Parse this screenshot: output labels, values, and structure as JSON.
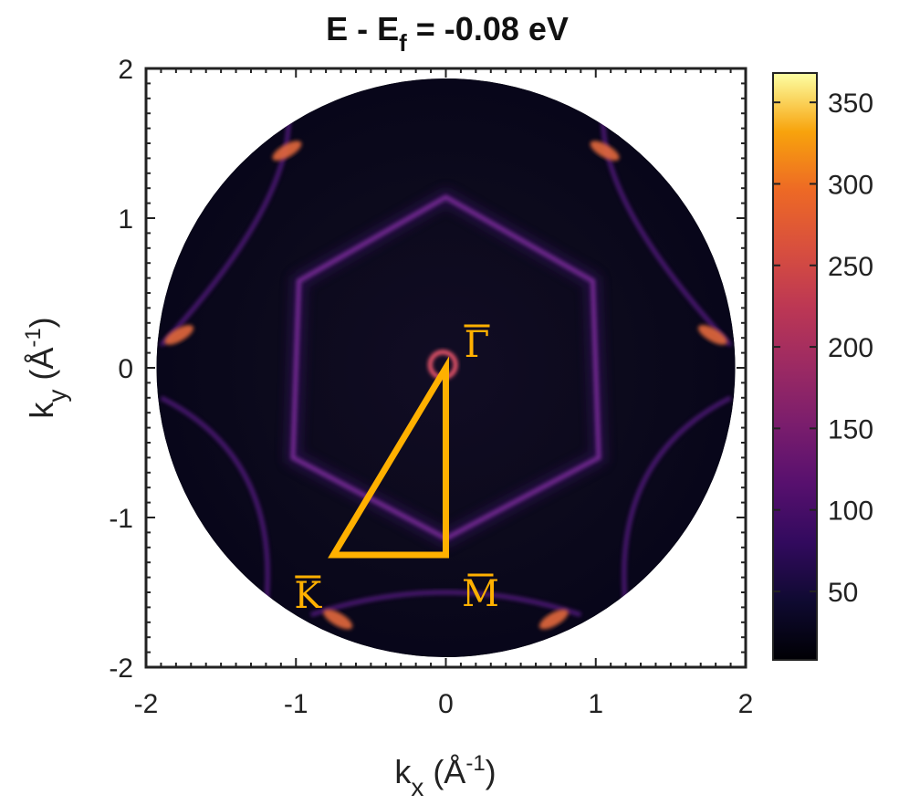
{
  "chart_data": {
    "type": "heatmap",
    "title": "E - E_f = -0.08 eV",
    "title_parts": {
      "main": "E - E",
      "sub": "f",
      "rest": " = -0.08 eV"
    },
    "xlabel": {
      "main": "k",
      "sub": "x",
      "unit_open": " (Å",
      "sup": "-1",
      "unit_close": ")"
    },
    "ylabel": {
      "main": "k",
      "sub": "y",
      "unit_open": " (Å",
      "sup": "-1",
      "unit_close": ")"
    },
    "xlim": [
      -2,
      2
    ],
    "ylim": [
      -2,
      2
    ],
    "xticks": [
      -2,
      -1,
      0,
      1,
      2
    ],
    "yticks": [
      -2,
      -1,
      0,
      1,
      2
    ],
    "xtick_labels": [
      "-2",
      "-1",
      "0",
      "1",
      "2"
    ],
    "ytick_labels": [
      "-2",
      "-1",
      "0",
      "1",
      "2"
    ],
    "colorbar": {
      "colormap": "inferno",
      "range": [
        8,
        368
      ],
      "ticks": [
        50,
        100,
        150,
        200,
        250,
        300,
        350
      ],
      "tick_labels": [
        "50",
        "100",
        "150",
        "200",
        "250",
        "300",
        "350"
      ]
    },
    "data_region": {
      "shape": "circle",
      "center": [
        0,
        0
      ],
      "radius": 1.93
    },
    "features": {
      "gamma_pocket": {
        "center": [
          -0.02,
          0.02
        ],
        "radius": 0.085
      },
      "hexagon": {
        "vertices": [
          [
            0,
            1.14
          ],
          [
            0.98,
            0.58
          ],
          [
            1.02,
            -0.6
          ],
          [
            0,
            -1.14
          ],
          [
            -1.02,
            -0.6
          ],
          [
            -0.98,
            0.58
          ]
        ]
      },
      "bright_spots": [
        [
          1.78,
          0.22
        ],
        [
          -1.78,
          0.22
        ],
        [
          0.72,
          -1.68
        ],
        [
          -0.72,
          -1.68
        ],
        [
          1.06,
          1.45
        ],
        [
          -1.06,
          1.45
        ]
      ]
    },
    "brillouin_zone_triangle": {
      "color": "#FFB000",
      "points": [
        {
          "label": "Γ",
          "k": [
            0,
            0
          ]
        },
        {
          "label": "M",
          "k": [
            0,
            -1.25
          ]
        },
        {
          "label": "K",
          "k": [
            -0.75,
            -1.25
          ]
        }
      ]
    }
  }
}
